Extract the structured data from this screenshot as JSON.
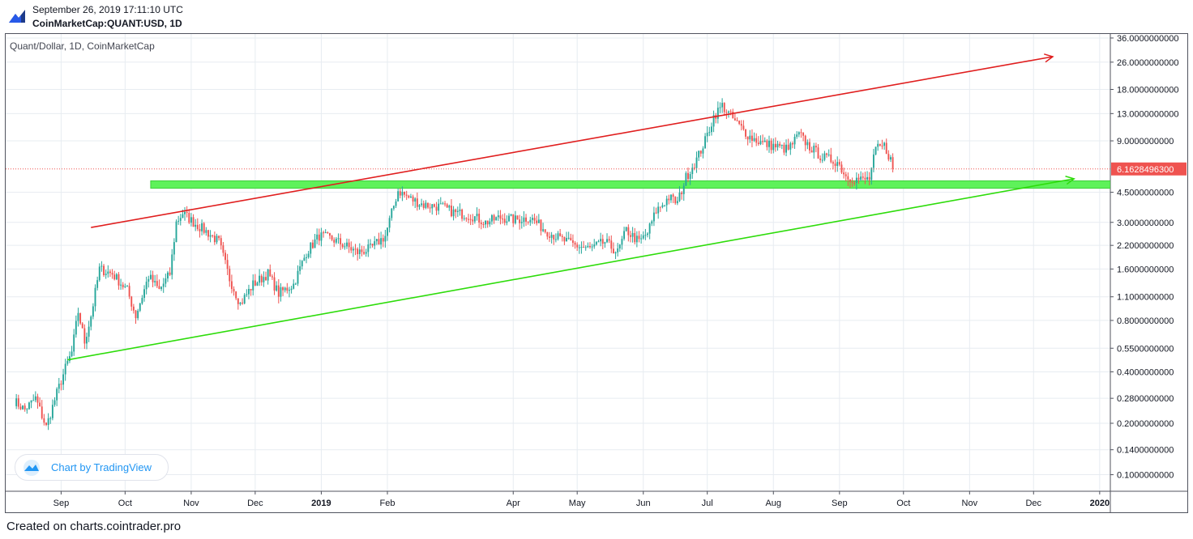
{
  "header": {
    "datetime": "September 26, 2019 17:11:10 UTC",
    "symbol": "CoinMarketCap:QUANT:USD, 1D"
  },
  "chart_label": "Quant/Dollar, 1D, CoinMarketCap",
  "badge": {
    "text": "Chart by TradingView",
    "icon": "tradingview-cloud-icon"
  },
  "footer": "Created on charts.cointrader.pro",
  "colors": {
    "up": "#26a69a",
    "down": "#ef5350",
    "resistance": "#e01e1e",
    "support": "#2ddc0a",
    "zone": "#5ef25a",
    "price_label": "#ef5350",
    "grid": "#e7ecf1"
  },
  "chart_data": {
    "type": "candlestick",
    "title": "Quant/Dollar, 1D, CoinMarketCap",
    "yscale": "log",
    "ylim": [
      0.08,
      38
    ],
    "y_ticks": [
      {
        "v": 36,
        "label": "36.0000000000"
      },
      {
        "v": 26,
        "label": "26.0000000000"
      },
      {
        "v": 18,
        "label": "18.0000000000"
      },
      {
        "v": 13,
        "label": "13.0000000000"
      },
      {
        "v": 9,
        "label": "9.0000000000"
      },
      {
        "v": 4.5,
        "label": "4.5000000000"
      },
      {
        "v": 3,
        "label": "3.0000000000"
      },
      {
        "v": 2.2,
        "label": "2.2000000000"
      },
      {
        "v": 1.6,
        "label": "1.6000000000"
      },
      {
        "v": 1.1,
        "label": "1.1000000000"
      },
      {
        "v": 0.8,
        "label": "0.8000000000"
      },
      {
        "v": 0.55,
        "label": "0.5500000000"
      },
      {
        "v": 0.4,
        "label": "0.4000000000"
      },
      {
        "v": 0.28,
        "label": "0.2800000000"
      },
      {
        "v": 0.2,
        "label": "0.2000000000"
      },
      {
        "v": 0.14,
        "label": "0.1400000000"
      },
      {
        "v": 0.1,
        "label": "0.1000000000"
      }
    ],
    "x_ticks": [
      {
        "date": "2018-09-01",
        "label": "Sep",
        "bold": false
      },
      {
        "date": "2018-10-01",
        "label": "Oct",
        "bold": false
      },
      {
        "date": "2018-11-01",
        "label": "Nov",
        "bold": false
      },
      {
        "date": "2018-12-01",
        "label": "Dec",
        "bold": false
      },
      {
        "date": "2019-01-01",
        "label": "2019",
        "bold": true
      },
      {
        "date": "2019-02-01",
        "label": "Feb",
        "bold": false
      },
      {
        "date": "2019-04-01",
        "label": "Apr",
        "bold": false
      },
      {
        "date": "2019-05-01",
        "label": "May",
        "bold": false
      },
      {
        "date": "2019-06-01",
        "label": "Jun",
        "bold": false
      },
      {
        "date": "2019-07-01",
        "label": "Jul",
        "bold": false
      },
      {
        "date": "2019-08-01",
        "label": "Aug",
        "bold": false
      },
      {
        "date": "2019-09-01",
        "label": "Sep",
        "bold": false
      },
      {
        "date": "2019-10-01",
        "label": "Oct",
        "bold": false
      },
      {
        "date": "2019-11-01",
        "label": "Nov",
        "bold": false
      },
      {
        "date": "2019-12-01",
        "label": "Dec",
        "bold": false
      },
      {
        "date": "2020-01-01",
        "label": "2020",
        "bold": true
      }
    ],
    "x_range": [
      "2018-08-06",
      "2020-01-06"
    ],
    "price_path": [
      [
        "2018-08-10",
        0.27
      ],
      [
        "2018-08-15",
        0.24
      ],
      [
        "2018-08-20",
        0.28
      ],
      [
        "2018-08-25",
        0.19
      ],
      [
        "2018-08-30",
        0.3
      ],
      [
        "2018-09-03",
        0.42
      ],
      [
        "2018-09-06",
        0.52
      ],
      [
        "2018-09-09",
        0.9
      ],
      [
        "2018-09-12",
        0.6
      ],
      [
        "2018-09-15",
        0.85
      ],
      [
        "2018-09-19",
        1.6
      ],
      [
        "2018-09-25",
        1.5
      ],
      [
        "2018-10-02",
        1.2
      ],
      [
        "2018-10-06",
        0.85
      ],
      [
        "2018-10-12",
        1.45
      ],
      [
        "2018-10-17",
        1.2
      ],
      [
        "2018-10-22",
        1.5
      ],
      [
        "2018-10-25",
        3.0
      ],
      [
        "2018-10-28",
        3.4
      ],
      [
        "2018-11-02",
        3.0
      ],
      [
        "2018-11-09",
        2.6
      ],
      [
        "2018-11-14",
        2.3
      ],
      [
        "2018-11-19",
        1.4
      ],
      [
        "2018-11-24",
        1.0
      ],
      [
        "2018-11-30",
        1.3
      ],
      [
        "2018-12-07",
        1.5
      ],
      [
        "2018-12-12",
        1.15
      ],
      [
        "2018-12-19",
        1.3
      ],
      [
        "2018-12-25",
        2.0
      ],
      [
        "2018-12-31",
        2.5
      ],
      [
        "2019-01-06",
        2.4
      ],
      [
        "2019-01-12",
        2.2
      ],
      [
        "2019-01-18",
        2.0
      ],
      [
        "2019-01-24",
        2.1
      ],
      [
        "2019-01-31",
        2.5
      ],
      [
        "2019-02-06",
        4.6
      ],
      [
        "2019-02-12",
        4.1
      ],
      [
        "2019-02-18",
        3.8
      ],
      [
        "2019-02-26",
        3.7
      ],
      [
        "2019-03-05",
        3.4
      ],
      [
        "2019-03-12",
        3.3
      ],
      [
        "2019-03-19",
        3.0
      ],
      [
        "2019-03-26",
        3.2
      ],
      [
        "2019-04-02",
        3.1
      ],
      [
        "2019-04-09",
        3.2
      ],
      [
        "2019-04-16",
        2.7
      ],
      [
        "2019-04-23",
        2.4
      ],
      [
        "2019-04-30",
        2.2
      ],
      [
        "2019-05-07",
        2.1
      ],
      [
        "2019-05-14",
        2.3
      ],
      [
        "2019-05-20",
        2.0
      ],
      [
        "2019-05-24",
        2.7
      ],
      [
        "2019-05-30",
        2.3
      ],
      [
        "2019-06-03",
        2.6
      ],
      [
        "2019-06-07",
        3.5
      ],
      [
        "2019-06-13",
        4.2
      ],
      [
        "2019-06-17",
        3.9
      ],
      [
        "2019-06-21",
        5.5
      ],
      [
        "2019-06-26",
        7.0
      ],
      [
        "2019-06-30",
        9.0
      ],
      [
        "2019-07-04",
        12.5
      ],
      [
        "2019-07-08",
        14.5
      ],
      [
        "2019-07-12",
        12.5
      ],
      [
        "2019-07-16",
        11.0
      ],
      [
        "2019-07-21",
        9.5
      ],
      [
        "2019-07-27",
        8.7
      ],
      [
        "2019-08-03",
        8.3
      ],
      [
        "2019-08-08",
        8.0
      ],
      [
        "2019-08-13",
        9.8
      ],
      [
        "2019-08-18",
        8.3
      ],
      [
        "2019-08-24",
        7.2
      ],
      [
        "2019-08-31",
        6.8
      ],
      [
        "2019-09-04",
        5.6
      ],
      [
        "2019-09-08",
        5.4
      ],
      [
        "2019-09-12",
        5.3
      ],
      [
        "2019-09-15",
        5.4
      ],
      [
        "2019-09-18",
        8.0
      ],
      [
        "2019-09-22",
        8.4
      ],
      [
        "2019-09-25",
        7.0
      ],
      [
        "2019-09-26",
        6.16
      ]
    ],
    "last_price": {
      "value": 6.16284963,
      "label": "6.1628496300"
    },
    "annotations": [
      {
        "type": "trend_line",
        "name": "resistance",
        "from": [
          "2018-09-15",
          2.8
        ],
        "to": [
          "2019-12-10",
          28
        ],
        "arrow": true
      },
      {
        "type": "trend_line",
        "name": "support",
        "from": [
          "2018-09-04",
          0.47
        ],
        "to": [
          "2019-12-20",
          5.4
        ],
        "arrow": true
      },
      {
        "type": "zone",
        "name": "support-resistance-zone",
        "from": "2018-10-13",
        "to": "2020-01-06",
        "y_low": 4.75,
        "y_high": 5.25
      }
    ]
  }
}
